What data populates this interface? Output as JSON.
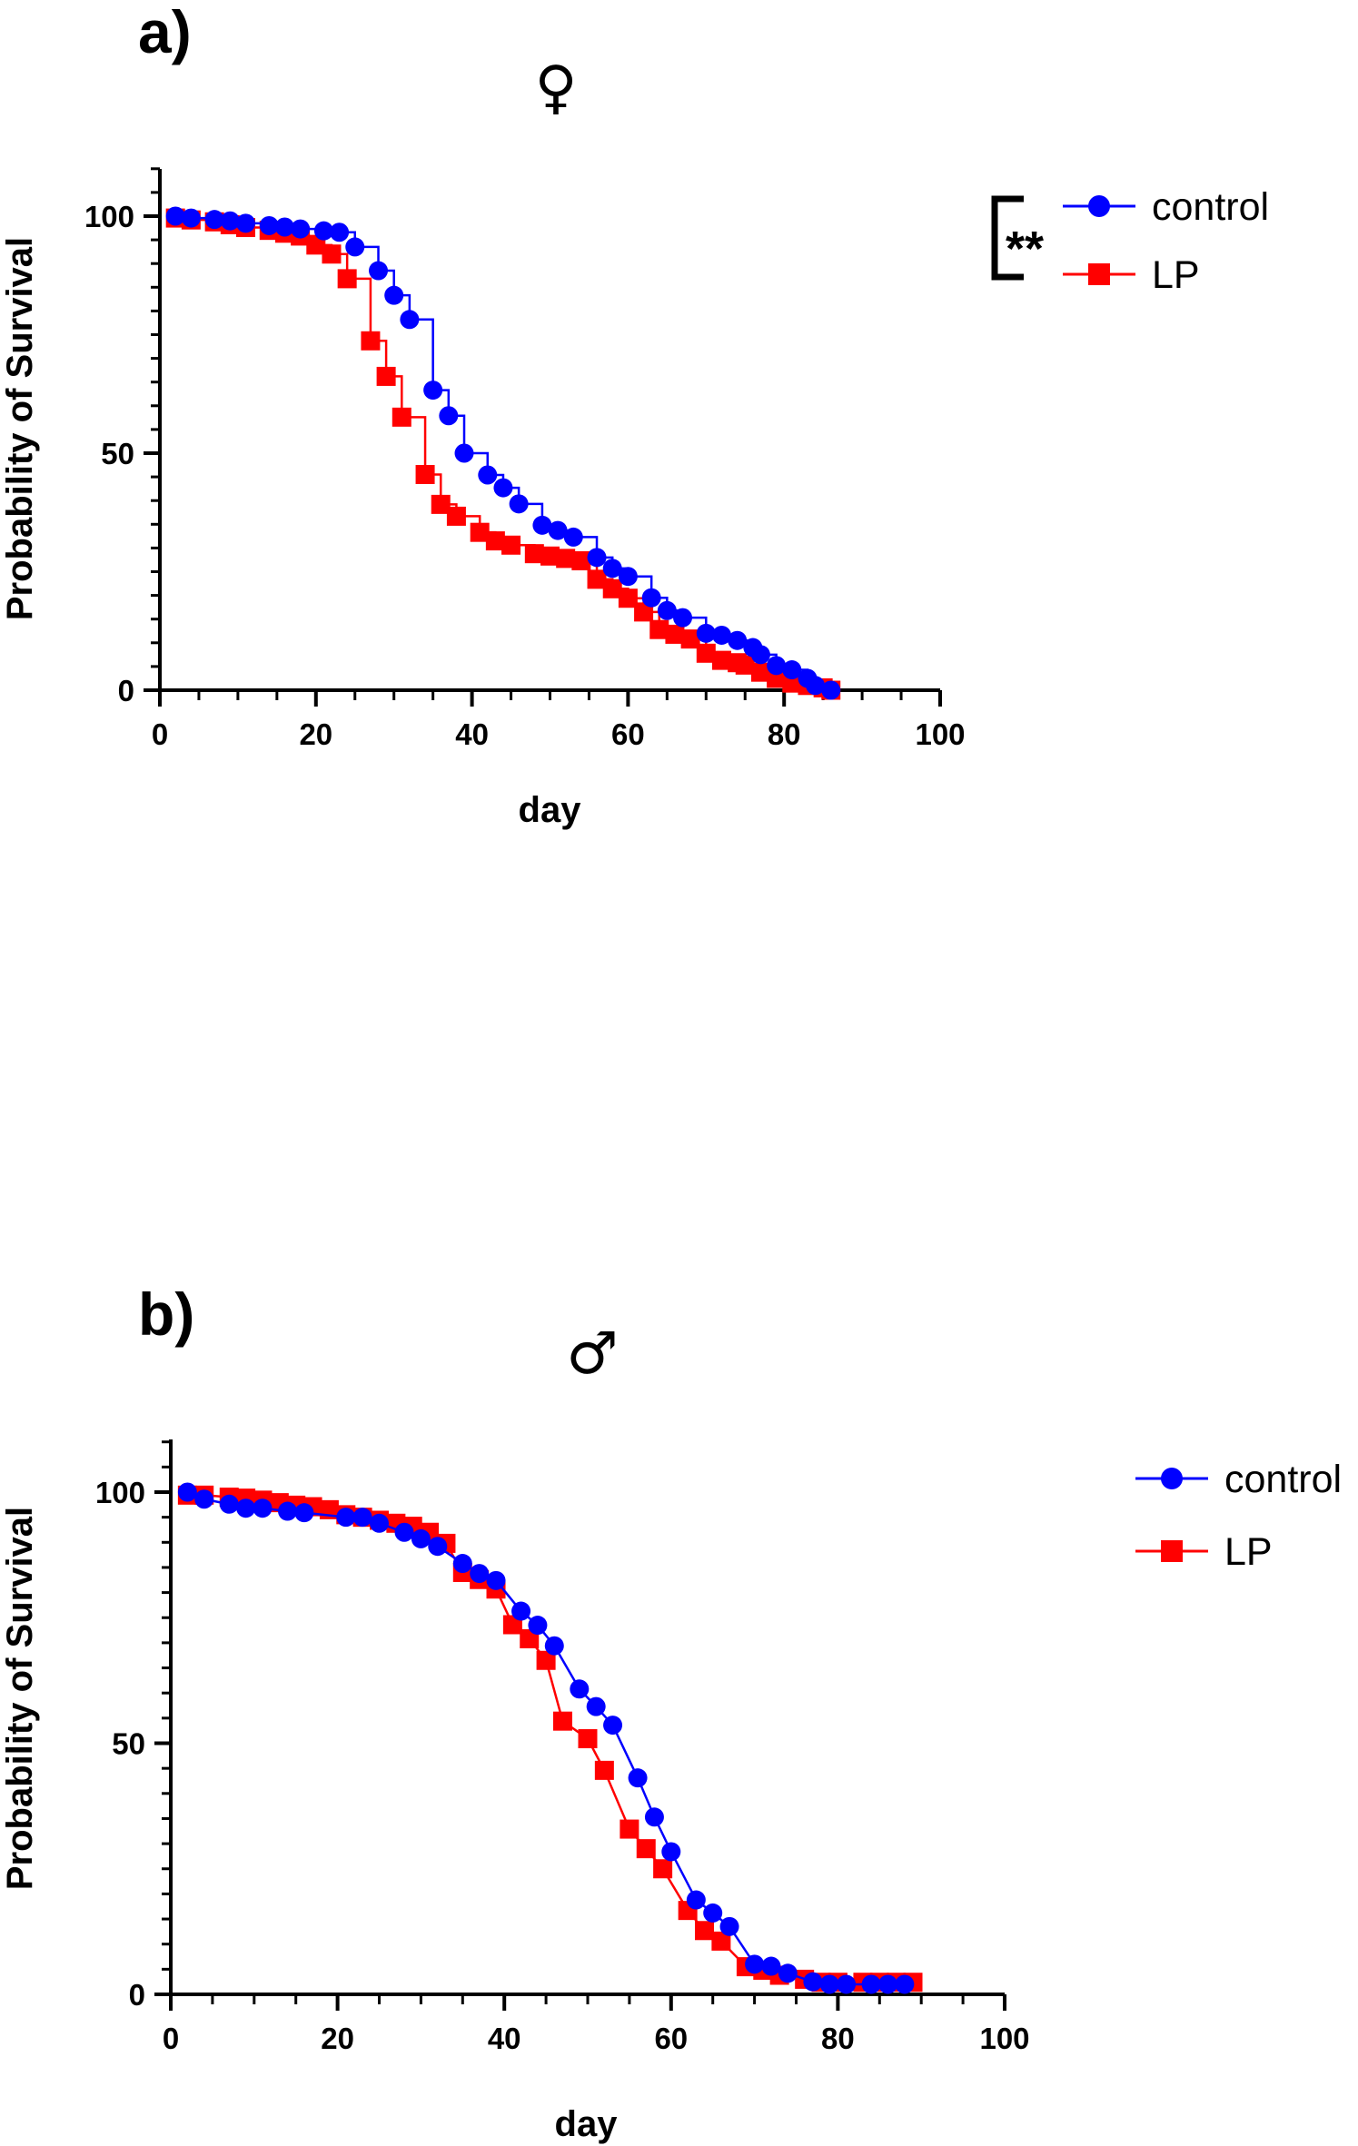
{
  "chart_data": [
    {
      "type": "line",
      "panel_label": "a)",
      "title": "♀",
      "xlabel": "day",
      "ylabel": "Probability of Survival",
      "xlim": [
        0,
        100
      ],
      "ylim": [
        0,
        110
      ],
      "xticks": [
        "0",
        "20",
        "40",
        "60",
        "80",
        "100"
      ],
      "yticks": [
        "0",
        "50",
        "100"
      ],
      "step": true,
      "grid": false,
      "legend_position": "top-right",
      "significance": "**",
      "series": [
        {
          "name": "control",
          "color": "#0000ff",
          "marker": "circle",
          "points": [
            [
              2,
              100
            ],
            [
              4,
              99.6
            ],
            [
              7,
              99.3
            ],
            [
              9,
              99
            ],
            [
              11,
              98.5
            ],
            [
              14,
              98
            ],
            [
              16,
              97.7
            ],
            [
              18,
              97.3
            ],
            [
              21,
              96.9
            ],
            [
              23,
              96.6
            ],
            [
              25,
              93.5
            ],
            [
              28,
              88.5
            ],
            [
              30,
              83.3
            ],
            [
              32,
              78.2
            ],
            [
              35,
              63.3
            ],
            [
              37,
              57.9
            ],
            [
              39,
              50
            ],
            [
              42,
              45.4
            ],
            [
              44,
              42.7
            ],
            [
              46,
              39.3
            ],
            [
              49,
              34.8
            ],
            [
              51,
              33.7
            ],
            [
              53,
              32.3
            ],
            [
              56,
              28
            ],
            [
              58,
              25.7
            ],
            [
              60,
              24
            ],
            [
              63,
              19.5
            ],
            [
              65,
              16.8
            ],
            [
              67,
              15.3
            ],
            [
              70,
              12
            ],
            [
              72,
              11.6
            ],
            [
              74,
              10.5
            ],
            [
              76,
              9
            ],
            [
              77,
              7.5
            ],
            [
              79,
              5.2
            ],
            [
              81,
              4.3
            ],
            [
              83,
              2.5
            ],
            [
              84,
              1
            ],
            [
              86,
              0
            ]
          ]
        },
        {
          "name": "LP",
          "color": "#ff0000",
          "marker": "square",
          "points": [
            [
              2,
              99.6
            ],
            [
              4,
              99.2
            ],
            [
              7,
              98.8
            ],
            [
              9,
              98.2
            ],
            [
              11,
              97.6
            ],
            [
              14,
              97
            ],
            [
              16,
              96.4
            ],
            [
              18,
              95.8
            ],
            [
              20,
              93.9
            ],
            [
              22,
              92
            ],
            [
              24,
              86.8
            ],
            [
              27,
              73.7
            ],
            [
              29,
              66.2
            ],
            [
              31,
              57.6
            ],
            [
              34,
              45.5
            ],
            [
              36,
              39.2
            ],
            [
              38,
              36.7
            ],
            [
              41,
              33.3
            ],
            [
              43,
              31.5
            ],
            [
              45,
              30.6
            ],
            [
              48,
              28.8
            ],
            [
              50,
              28.3
            ],
            [
              52,
              27.8
            ],
            [
              54,
              27.3
            ],
            [
              56,
              23.4
            ],
            [
              58,
              21.4
            ],
            [
              60,
              19.4
            ],
            [
              62,
              16.5
            ],
            [
              64,
              12.8
            ],
            [
              66,
              11.8
            ],
            [
              68,
              10.8
            ],
            [
              70,
              7.8
            ],
            [
              72,
              6.3
            ],
            [
              74,
              5.8
            ],
            [
              75,
              5.3
            ],
            [
              77,
              3.8
            ],
            [
              79,
              2.5
            ],
            [
              81,
              1.5
            ],
            [
              83,
              1
            ],
            [
              85,
              0.5
            ],
            [
              86,
              0
            ]
          ]
        }
      ]
    },
    {
      "type": "line",
      "panel_label": "b)",
      "title": "♂",
      "xlabel": "day",
      "ylabel": "Probability of Survival",
      "xlim": [
        0,
        100
      ],
      "ylim": [
        0,
        110
      ],
      "xticks": [
        "0",
        "20",
        "40",
        "60",
        "80",
        "100"
      ],
      "yticks": [
        "0",
        "50",
        "100"
      ],
      "step": false,
      "grid": false,
      "legend_position": "top-right",
      "series": [
        {
          "name": "control",
          "color": "#0000ff",
          "marker": "circle",
          "points": [
            [
              2,
              100
            ],
            [
              4,
              98.6
            ],
            [
              7,
              97.6
            ],
            [
              9,
              96.8
            ],
            [
              11,
              96.8
            ],
            [
              14,
              96.2
            ],
            [
              16,
              95.9
            ],
            [
              21,
              95
            ],
            [
              23,
              95
            ],
            [
              25,
              93.8
            ],
            [
              28,
              92
            ],
            [
              30,
              90.7
            ],
            [
              32,
              89.2
            ],
            [
              35,
              85.8
            ],
            [
              37,
              83.8
            ],
            [
              39,
              82.4
            ],
            [
              42,
              76.3
            ],
            [
              44,
              73.5
            ],
            [
              46,
              69.4
            ],
            [
              49,
              60.8
            ],
            [
              51,
              57.3
            ],
            [
              53,
              53.6
            ],
            [
              56,
              43.1
            ],
            [
              58,
              35.3
            ],
            [
              60,
              28.4
            ],
            [
              63,
              18.8
            ],
            [
              65,
              16.2
            ],
            [
              67,
              13.5
            ],
            [
              70,
              6
            ],
            [
              72,
              5.6
            ],
            [
              74,
              4.2
            ],
            [
              77,
              2.5
            ],
            [
              79,
              2
            ],
            [
              81,
              2
            ],
            [
              84,
              2
            ],
            [
              86,
              2
            ],
            [
              88,
              2
            ]
          ]
        },
        {
          "name": "LP",
          "color": "#ff0000",
          "marker": "square",
          "points": [
            [
              2,
              99.4
            ],
            [
              4,
              99.4
            ],
            [
              7,
              99
            ],
            [
              9,
              98.8
            ],
            [
              11,
              98.4
            ],
            [
              13,
              97.9
            ],
            [
              15,
              97.4
            ],
            [
              17,
              97.1
            ],
            [
              19,
              96.5
            ],
            [
              21,
              95.5
            ],
            [
              23,
              95
            ],
            [
              25,
              94.4
            ],
            [
              27,
              93.8
            ],
            [
              29,
              93.2
            ],
            [
              31,
              92
            ],
            [
              33,
              89.8
            ],
            [
              35,
              84
            ],
            [
              37,
              82.6
            ],
            [
              39,
              80.7
            ],
            [
              41,
              73.6
            ],
            [
              43,
              70.8
            ],
            [
              45,
              66.5
            ],
            [
              47,
              54.4
            ],
            [
              50,
              50.9
            ],
            [
              52,
              44.6
            ],
            [
              55,
              32.9
            ],
            [
              57,
              29
            ],
            [
              59,
              25
            ],
            [
              62,
              16.7
            ],
            [
              64,
              12.7
            ],
            [
              66,
              10.6
            ],
            [
              69,
              5.5
            ],
            [
              71,
              4.8
            ],
            [
              73,
              3.8
            ],
            [
              76,
              3
            ],
            [
              78,
              2.4
            ],
            [
              80,
              2.4
            ],
            [
              83,
              2.4
            ],
            [
              85,
              2.4
            ],
            [
              87,
              2.4
            ],
            [
              89,
              2.4
            ]
          ]
        }
      ]
    }
  ]
}
